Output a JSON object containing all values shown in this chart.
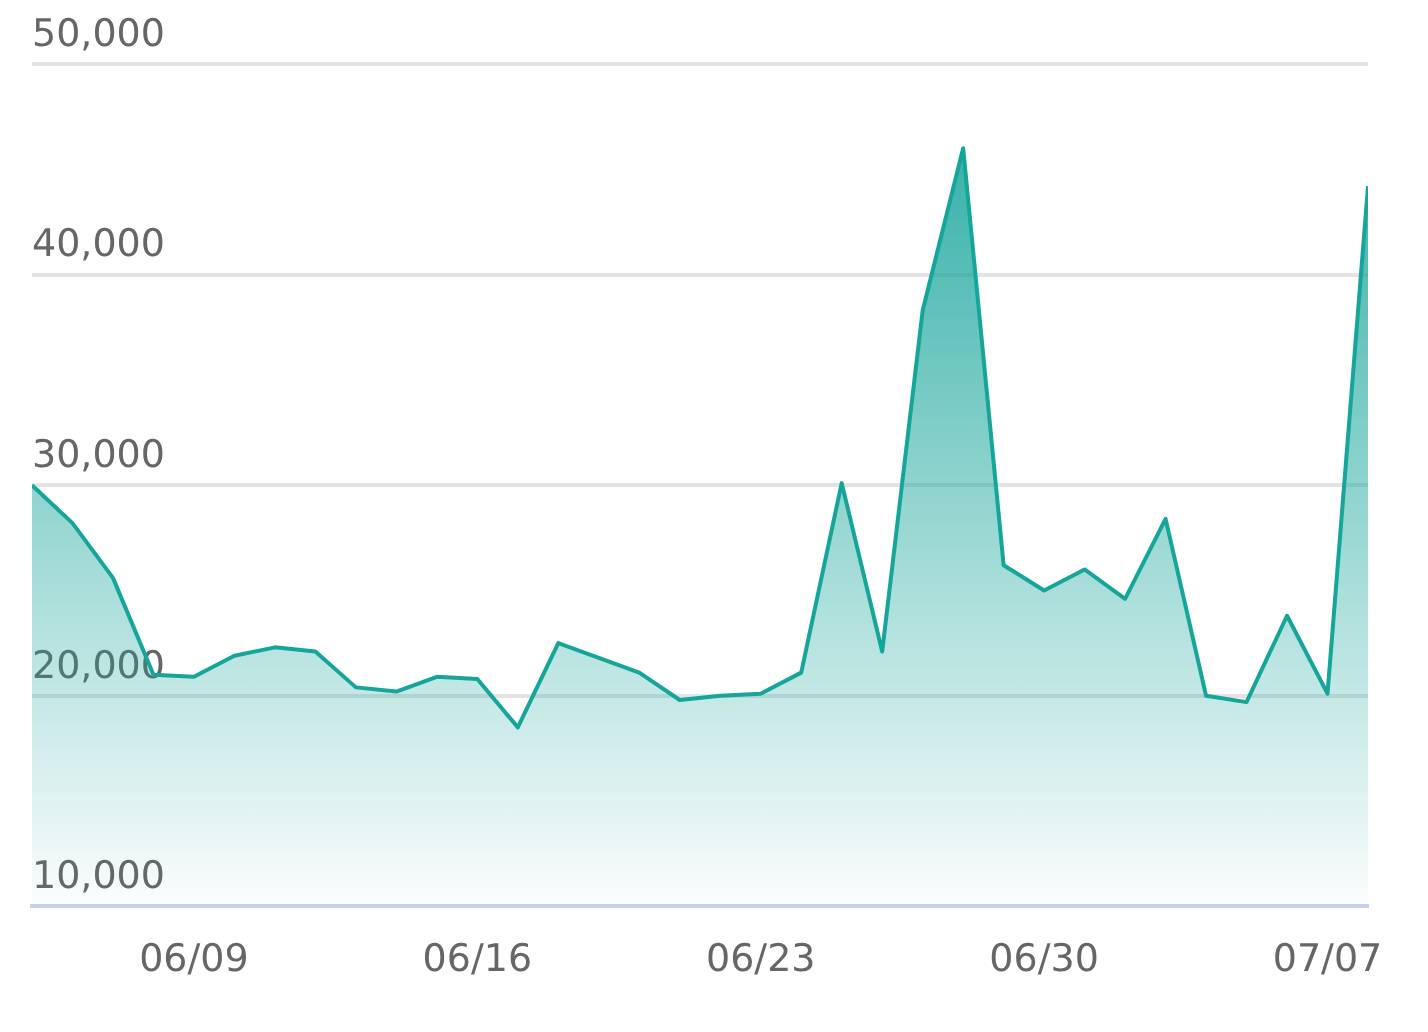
{
  "chart_data": {
    "type": "area",
    "x": [
      "--06-05",
      "--06-06",
      "--06-07",
      "--06-08",
      "--06-09",
      "--06-10",
      "--06-11",
      "--06-12",
      "--06-13",
      "--06-14",
      "--06-15",
      "--06-16",
      "--06-17",
      "--06-18",
      "--06-19",
      "--06-20",
      "--06-21",
      "--06-22",
      "--06-23",
      "--06-24",
      "--06-25",
      "--06-26",
      "--06-27",
      "--06-28",
      "--06-29",
      "--06-30",
      "--07-01",
      "--07-02",
      "--07-03",
      "--07-04",
      "--07-05",
      "--07-06",
      "--07-07",
      "--07-08"
    ],
    "series": [
      {
        "color": "#16a59a",
        "values": [
          30000,
          28200,
          25600,
          21000,
          20900,
          21900,
          22300,
          22100,
          20400,
          20200,
          20900,
          20800,
          18500,
          22500,
          21800,
          21100,
          19800,
          20000,
          20100,
          21100,
          30100,
          22100,
          38300,
          46000,
          26200,
          25000,
          26000,
          24600,
          28400,
          20000,
          19700,
          23800,
          20100,
          44200
        ]
      }
    ],
    "xlim": [
      "--06-05",
      "--07-08"
    ],
    "xticks": [
      {
        "value": "--06-09",
        "label": "06/09"
      },
      {
        "value": "--06-16",
        "label": "06/16"
      },
      {
        "value": "--06-23",
        "label": "06/23"
      },
      {
        "value": "--06-30",
        "label": "06/30"
      },
      {
        "value": "--07-07",
        "label": "07/07"
      }
    ],
    "ylim": [
      10000,
      50000
    ],
    "yticks": [
      {
        "value": 10000,
        "label": "10,000"
      },
      {
        "value": 20000,
        "label": "20,000"
      },
      {
        "value": 30000,
        "label": "30,000"
      },
      {
        "value": 40000,
        "label": "40,000"
      },
      {
        "value": 50000,
        "label": "50,000"
      }
    ],
    "grid": "y",
    "legend": false,
    "marker": "none",
    "line_style": "solid"
  }
}
